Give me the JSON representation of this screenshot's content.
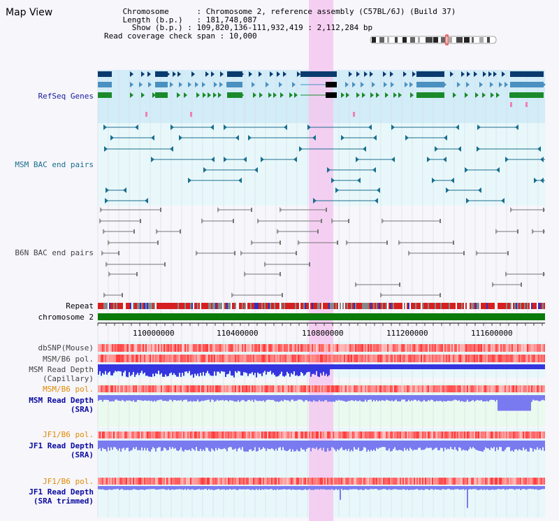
{
  "title": "Map View",
  "header": {
    "chromosome_label": "Chromosome",
    "chromosome_value": "Chromosome 2, reference assembly (C57BL/6J) (Build 37)",
    "length_label": "Length (b.p.)",
    "length_value": "181,748,087",
    "show_label": "Show (b.p.)",
    "show_value": "109,820,136-111,932,419 : 2,112,284 bp",
    "coverage_label": "Read coverage check span",
    "coverage_value": "10,000"
  },
  "tracks": {
    "refseq": "RefSeq Genes",
    "msm_bac": "MSM BAC end pairs",
    "b6n_bac": "B6N BAC end pairs",
    "repeat": "Repeat",
    "chromosome": "chromosome 2",
    "dbsnp": "dbSNP(Mouse)",
    "msm_b6_pol": "MSM/B6 pol.",
    "msm_depth_cap": "MSM Read Depth\n(Capillary)",
    "msm_b6_pol2": "MSM/B6 pol.",
    "msm_depth_sra": "MSM Read Depth\n(SRA)",
    "jf1_b6_pol": "JF1/B6 pol.",
    "jf1_depth_sra": "JF1 Read Depth\n(SRA)",
    "jf1_b6_pol2": "JF1/B6 pol.",
    "jf1_depth_trim": "JF1 Read Depth\n(SRA trimmed)"
  },
  "axis": {
    "ticks": [
      "110000000",
      "110400000",
      "110800000",
      "111200000",
      "111600000"
    ]
  },
  "colors": {
    "highlight": "#f5c8f0",
    "refseq_bg": "#d2ecf8",
    "refseq_dark": "#0a3a6e",
    "refseq_mid": "#4a90c0",
    "refseq_green": "#1a8a2a",
    "msm_bac": "#1a6e8e",
    "b6n_bac": "#777777",
    "chromosome_bar": "#0a7a0a",
    "pol_red": "#e03030",
    "depth_blue": "#3535e0",
    "depth_light": "#7a7af0"
  }
}
